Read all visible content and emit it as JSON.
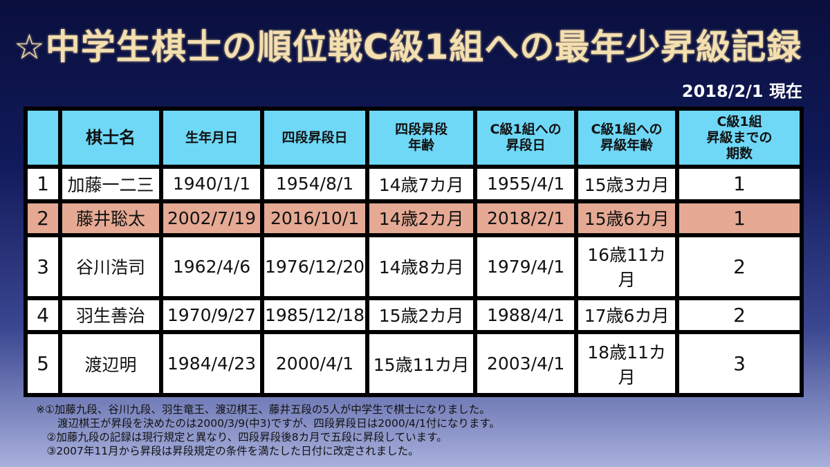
{
  "title": "☆中学生棋士の順位戦C級1組への最年少昇級記録",
  "date": "2018/2/1 現在",
  "table": {
    "headers": [
      "",
      "棋士名",
      "生年月日",
      "四段昇段日",
      "四段昇段\n年齢",
      "C級1組への\n昇段日",
      "C級1組への\n昇級年齢",
      "C級1組\n昇級までの\n期数"
    ],
    "rows": [
      {
        "rank": "1",
        "name": "加藤一二三",
        "birth": "1940/1/1",
        "promo4": "1954/8/1",
        "age4": "14歳7カ月",
        "c1date": "1955/4/1",
        "c1age": "15歳3カ月",
        "terms": "1"
      },
      {
        "rank": "2",
        "name": "藤井聡太",
        "birth": "2002/7/19",
        "promo4": "2016/10/1",
        "age4": "14歳2カ月",
        "c1date": "2018/2/1",
        "c1age": "15歳6カ月",
        "terms": "1"
      },
      {
        "rank": "3",
        "name": "谷川浩司",
        "birth": "1962/4/6",
        "promo4": "1976/12/20",
        "age4": "14歳8カ月",
        "c1date": "1979/4/1",
        "c1age": "16歳11カ月",
        "terms": "2"
      },
      {
        "rank": "4",
        "name": "羽生善治",
        "birth": "1970/9/27",
        "promo4": "1985/12/18",
        "age4": "15歳2カ月",
        "c1date": "1988/4/1",
        "c1age": "17歳6カ月",
        "terms": "2"
      },
      {
        "rank": "5",
        "name": "渡辺明",
        "birth": "1984/4/23",
        "promo4": "2000/4/1",
        "age4": "15歳11カ月",
        "c1date": "2003/4/1",
        "c1age": "18歳11カ月",
        "terms": "3"
      }
    ]
  },
  "notes": [
    "※①加藤九段、谷川九段、羽生竜王、渡辺棋王、藤井五段の5人が中学生で棋士になりました。",
    "　　渡辺棋王が昇段を決めたのは2000/3/9(中3)ですが、四段昇段日は2000/4/1付になります。",
    "　②加藤九段の記録は現行規定と異なり、四段昇段後8カ月で五段に昇段しています。",
    "　③2007年11月から昇段は昇段規定の条件を満たした日付に改定されました。"
  ],
  "colors": {
    "title": "#f4dfb0",
    "header_bg": "#6fd8f7",
    "highlight_row": "#e5a994",
    "cell_bg": "#ffffff"
  }
}
